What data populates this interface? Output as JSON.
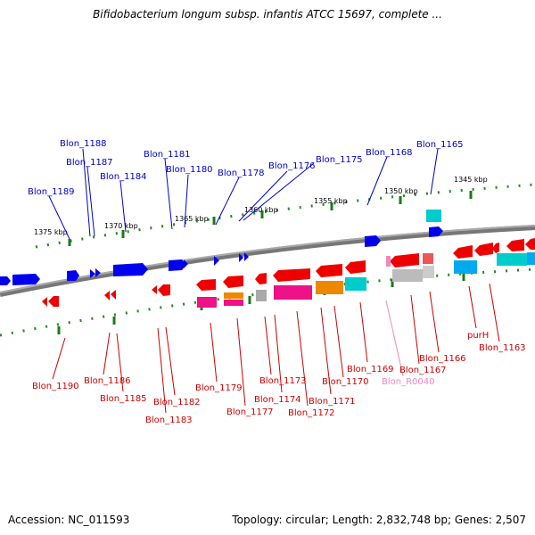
{
  "title": "Bifidobacterium longum subsp. infantis ATCC 15697, complete ...",
  "footer": {
    "accession": "Accession: NC_011593",
    "summary": "Topology: circular; Length: 2,832,748 bp; Genes: 2,507"
  },
  "colors": {
    "forward": "#0000ee",
    "reverse": "#ee0000",
    "backbone": "#888888",
    "ticks": "#228b22",
    "pseudo": "#ee88bb",
    "magenta": "#ee1188",
    "orange": "#ee8800",
    "cyan": "#00cccc",
    "skyblue": "#00aaee",
    "gray": "#aaaaaa"
  },
  "scale_labels": [
    "1375 kbp",
    "1370 kbp",
    "1365 kbp",
    "1360 kbp",
    "1355 kbp",
    "1350 kbp",
    "1345 kbp"
  ],
  "gene_labels_top": [
    "Blon_1188",
    "Blon_1187",
    "Blon_1189",
    "Blon_1184",
    "Blon_1181",
    "Blon_1180",
    "Blon_1178",
    "Blon_1176",
    "Blon_1175",
    "Blon_1168",
    "Blon_1165"
  ],
  "gene_labels_bottom": [
    "Blon_1190",
    "Blon_1186",
    "Blon_1185",
    "Blon_1182",
    "Blon_1183",
    "Blon_1179",
    "Blon_1177",
    "Blon_1173",
    "Blon_1174",
    "Blon_1172",
    "Blon_1171",
    "Blon_1170",
    "Blon_1169",
    "Blon_R0040",
    "Blon_1167",
    "Blon_1166",
    "purH",
    "Blon_1163"
  ]
}
